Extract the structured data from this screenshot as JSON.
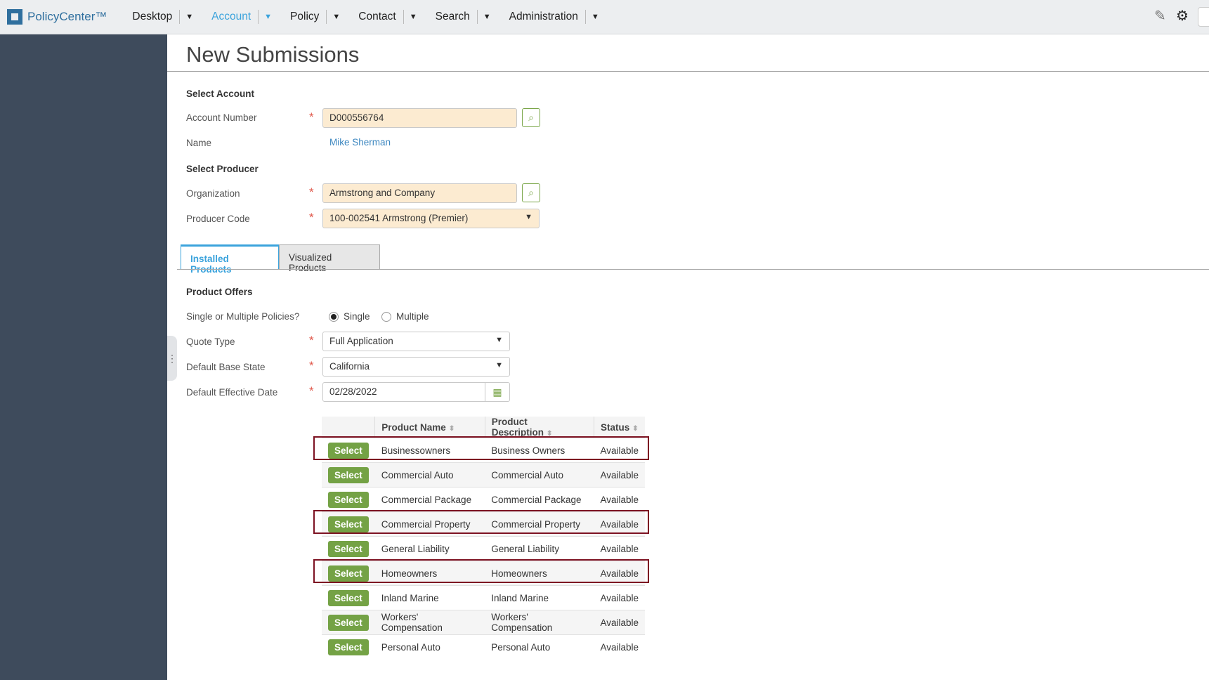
{
  "app": {
    "name": "PolicyCenter™",
    "nav": [
      {
        "label": "Desktop",
        "active": false
      },
      {
        "label": "Account",
        "active": true
      },
      {
        "label": "Policy",
        "active": false
      },
      {
        "label": "Contact",
        "active": false
      },
      {
        "label": "Search",
        "active": false
      },
      {
        "label": "Administration",
        "active": false
      }
    ]
  },
  "page": {
    "title": "New Submissions"
  },
  "account": {
    "section": "Select Account",
    "number_label": "Account Number",
    "number_value": "D000556764",
    "name_label": "Name",
    "name_value": "Mike Sherman"
  },
  "producer": {
    "section": "Select Producer",
    "org_label": "Organization",
    "org_value": "Armstrong and Company",
    "code_label": "Producer Code",
    "code_value": "100-002541 Armstrong (Premier)"
  },
  "tabs": [
    "Installed Products",
    "Visualized Products"
  ],
  "offers": {
    "section": "Product Offers",
    "policies_label": "Single or Multiple Policies?",
    "single": "Single",
    "multiple": "Multiple",
    "selected": "Single",
    "quote_label": "Quote Type",
    "quote_value": "Full Application",
    "state_label": "Default Base State",
    "state_value": "California",
    "date_label": "Default Effective Date",
    "date_value": "02/28/2022"
  },
  "table": {
    "headers": [
      "Product Name",
      "Product Description",
      "Status"
    ],
    "button": "Select",
    "rows": [
      {
        "name": "Businessowners",
        "desc": "Business Owners",
        "status": "Available",
        "highlight": true
      },
      {
        "name": "Commercial Auto",
        "desc": "Commercial Auto",
        "status": "Available"
      },
      {
        "name": "Commercial Package",
        "desc": "Commercial Package",
        "status": "Available"
      },
      {
        "name": "Commercial Property",
        "desc": "Commercial Property",
        "status": "Available",
        "highlight": true
      },
      {
        "name": "General Liability",
        "desc": "General Liability",
        "status": "Available"
      },
      {
        "name": "Homeowners",
        "desc": "Homeowners",
        "status": "Available",
        "highlight": true
      },
      {
        "name": "Inland Marine",
        "desc": "Inland Marine",
        "status": "Available"
      },
      {
        "name": "Workers' Compensation",
        "desc": "Workers' Compensation",
        "status": "Available"
      },
      {
        "name": "Personal Auto",
        "desc": "Personal Auto",
        "status": "Available"
      }
    ]
  },
  "colors": {
    "accent": "#3ba3dc",
    "select_button": "#74a245",
    "highlight_border": "#7d1222",
    "sidebar": "#3e4b5c",
    "required_field": "#fcebd1"
  }
}
